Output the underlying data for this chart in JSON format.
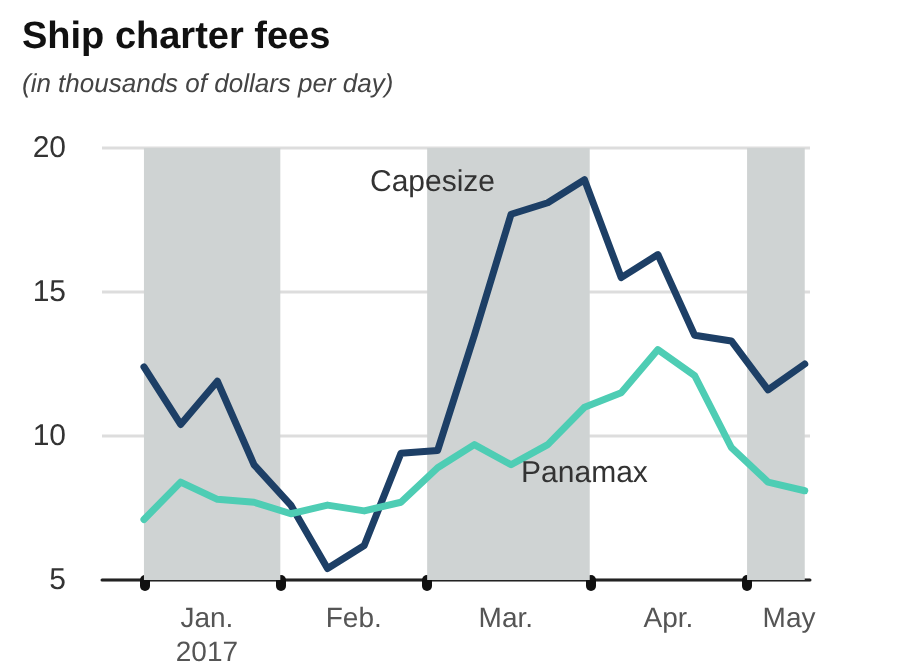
{
  "chart_data": {
    "type": "line",
    "title": "Ship charter fees",
    "subtitle": "(in thousands of dollars per day)",
    "x": [
      "2017-01-06",
      "2017-01-13",
      "2017-01-20",
      "2017-01-27",
      "2017-02-03",
      "2017-02-10",
      "2017-02-17",
      "2017-02-24",
      "2017-03-03",
      "2017-03-10",
      "2017-03-17",
      "2017-03-24",
      "2017-03-31",
      "2017-04-07",
      "2017-04-14",
      "2017-04-21",
      "2017-04-28",
      "2017-05-05",
      "2017-05-12"
    ],
    "series": [
      {
        "name": "Capesize",
        "color": "#1d3f66",
        "values": [
          12.4,
          10.4,
          11.9,
          9.0,
          7.6,
          5.4,
          6.2,
          9.4,
          9.5,
          13.5,
          17.7,
          18.1,
          18.9,
          15.5,
          16.3,
          13.5,
          13.3,
          11.6,
          12.5
        ]
      },
      {
        "name": "Panamax",
        "color": "#4ecdb4",
        "values": [
          7.1,
          8.4,
          7.8,
          7.7,
          7.3,
          7.6,
          7.4,
          7.7,
          8.9,
          9.7,
          9.0,
          9.7,
          11.0,
          11.5,
          13.0,
          12.1,
          9.6,
          8.4,
          8.1
        ]
      }
    ],
    "xlim": [
      "2016-12-29",
      "2017-05-13"
    ],
    "xticks": [
      {
        "value": "2017-01-06",
        "label": null
      },
      {
        "value": "2017-02-01",
        "label": null
      },
      {
        "value": "2017-03-01",
        "label": null
      },
      {
        "value": "2017-04-01",
        "label": null
      },
      {
        "value": "2017-05-01",
        "label": null
      },
      {
        "value": "2017-01-18",
        "label": "Jan.\n2017"
      },
      {
        "value": "2017-02-15",
        "label": "Feb."
      },
      {
        "value": "2017-03-16",
        "label": "Mar."
      },
      {
        "value": "2017-04-16",
        "label": "Apr."
      },
      {
        "value": "2017-05-09",
        "label": "May"
      }
    ],
    "ylim": [
      5,
      20
    ],
    "yticks": [
      5,
      10,
      15,
      20
    ],
    "bands": [
      {
        "axis": "x",
        "from": "2017-01-06",
        "to": "2017-02-01",
        "color": "#cfd3d3"
      },
      {
        "axis": "x",
        "from": "2017-03-01",
        "to": "2017-04-01",
        "color": "#cfd3d3"
      },
      {
        "axis": "x",
        "from": "2017-05-01",
        "to": "2017-05-12",
        "color": "#cfd3d3"
      }
    ],
    "grid": "y",
    "legend": false,
    "marker": "none",
    "line_style": "solid"
  }
}
